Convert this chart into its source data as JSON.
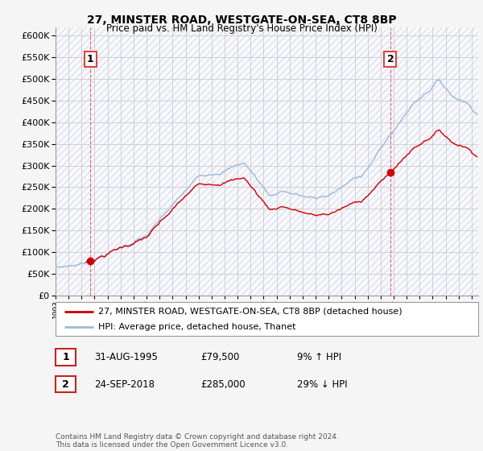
{
  "title": "27, MINSTER ROAD, WESTGATE-ON-SEA, CT8 8BP",
  "subtitle": "Price paid vs. HM Land Registry's House Price Index (HPI)",
  "legend_line1": "27, MINSTER ROAD, WESTGATE-ON-SEA, CT8 8BP (detached house)",
  "legend_line2": "HPI: Average price, detached house, Thanet",
  "transaction1_label": "1",
  "transaction1_date": "31-AUG-1995",
  "transaction1_price": "£79,500",
  "transaction1_hpi": "9% ↑ HPI",
  "transaction2_label": "2",
  "transaction2_date": "24-SEP-2018",
  "transaction2_price": "£285,000",
  "transaction2_hpi": "29% ↓ HPI",
  "footer": "Contains HM Land Registry data © Crown copyright and database right 2024.\nThis data is licensed under the Open Government Licence v3.0.",
  "property_color": "#cc0000",
  "hpi_color": "#99bbdd",
  "vline_color": "#dd4444",
  "ylim_min": 0,
  "ylim_max": 620000,
  "yticks": [
    0,
    50000,
    100000,
    150000,
    200000,
    250000,
    300000,
    350000,
    400000,
    450000,
    500000,
    550000,
    600000
  ],
  "background_color": "#f5f5f5",
  "plot_background": "#f8f8ff",
  "grid_color": "#cccccc",
  "hatch_color": "#e0e0e8"
}
